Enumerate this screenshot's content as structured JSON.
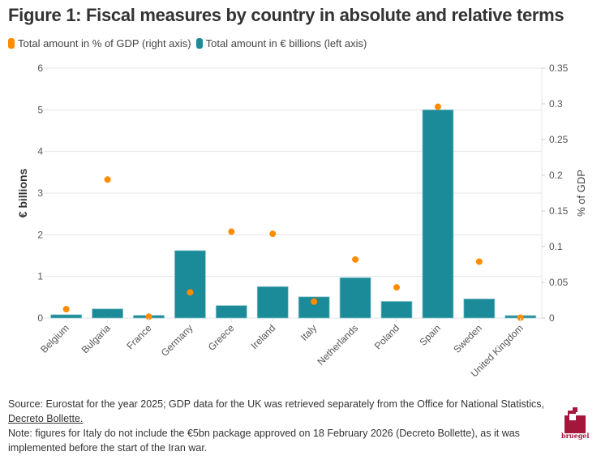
{
  "title": "Figure 1: Fiscal measures by country in absolute and relative terms",
  "legend": [
    {
      "label": "Total amount in % of GDP (right axis)",
      "color": "#ff8c00"
    },
    {
      "label": "Total amount in € billions (left axis)",
      "color": "#1b8a99"
    }
  ],
  "chart_data": {
    "type": "bar",
    "title": "Figure 1: Fiscal measures by country in absolute and relative terms",
    "categories": [
      "Belgium",
      "Bulgaria",
      "France",
      "Germany",
      "Greece",
      "Ireland",
      "Italy",
      "Netherlands",
      "Poland",
      "Spain",
      "Sweden",
      "United Kingdom"
    ],
    "series": [
      {
        "name": "Total amount in € billions (left axis)",
        "type": "bar",
        "axis": "left",
        "color": "#1b8a99",
        "values": [
          0.08,
          0.22,
          0.065,
          1.62,
          0.3,
          0.755,
          0.51,
          0.97,
          0.4,
          5.0,
          0.46,
          0.06
        ]
      },
      {
        "name": "Total amount in % of GDP (right axis)",
        "type": "scatter",
        "axis": "right",
        "color": "#ff8c00",
        "values": [
          0.0125,
          0.194,
          0.002,
          0.036,
          0.121,
          0.118,
          0.023,
          0.082,
          0.043,
          0.296,
          0.079,
          0.0005
        ]
      }
    ],
    "xlabel": "",
    "ylabel": "€ billions",
    "ylabel_right": "% of GDP",
    "ylim": [
      0,
      6
    ],
    "ylim_right": [
      0,
      0.35
    ],
    "yticks": [
      "0",
      "1",
      "2",
      "3",
      "4",
      "5",
      "6"
    ],
    "yticks_values": [
      0,
      1,
      2,
      3,
      4,
      5,
      6
    ],
    "yticks_right": [
      "0",
      "0.05",
      "0.1",
      "0.15",
      "0.2",
      "0.25",
      "0.3",
      "0.35"
    ],
    "yticks_right_values": [
      0,
      0.05,
      0.1,
      0.15,
      0.2,
      0.25,
      0.3,
      0.35
    ],
    "grid": true,
    "legend_position": "top-left"
  },
  "footer": {
    "source_prefix": "Source: Eurostat for the year 2025; GDP data for the UK was retrieved separately from the Office for National Statistics, ",
    "source_link": "Decreto Bollette.",
    "note": "Note: figures for Italy do not include the €5bn package approved on 18 February 2026 (Decreto Bollette), as it was implemented before the start of the Iran war."
  },
  "logo": {
    "text": "bruegel",
    "color": "#a3173c"
  }
}
